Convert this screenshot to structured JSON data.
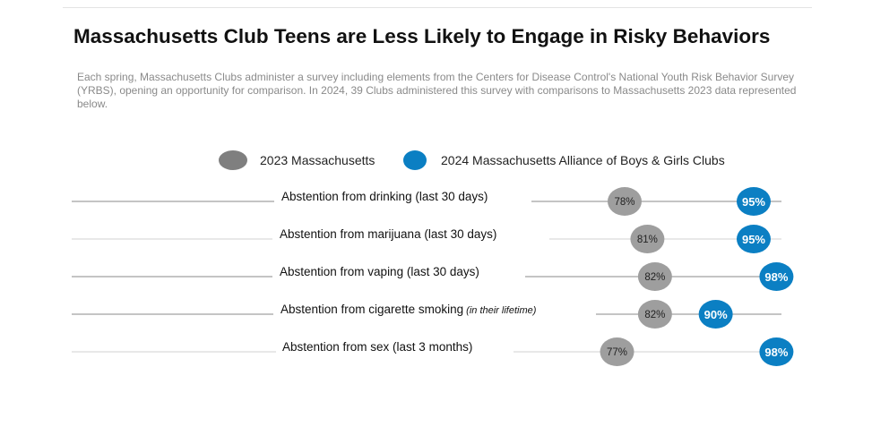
{
  "title": "Massachusetts Club Teens are Less Likely to Engage in Risky Behaviors",
  "subtitle": "Each spring, Massachusetts Clubs administer a survey including elements from the Centers for Disease Control's National Youth Risk Behavior Survey (YRBS), opening an opportunity for comparison.  In 2024, 39 Clubs administered this survey with comparisons to Massachusetts 2023 data represented below.",
  "colors": {
    "ma2023": "#9e9e9e",
    "clubs2024": "#0b7fc3",
    "legend_grey": "#7f7f7f",
    "line": "#d0d0d0",
    "line_dark": "#8a8a8a"
  },
  "chart_data": {
    "type": "scatter",
    "legend_placement": "top",
    "grid": false,
    "xlim": [
      70,
      100
    ],
    "categories": [
      "Abstention from drinking (last 30 days)",
      "Abstention from marijuana (last 30 days)",
      "Abstention from vaping (last 30 days)",
      "Abstention from cigarette smoking",
      "Abstention from sex (last 3 months)"
    ],
    "category_notes": [
      "",
      "",
      "",
      "(in their lifetime)",
      ""
    ],
    "series": [
      {
        "name": "2023 Massachusetts",
        "values": [
          78,
          81,
          82,
          82,
          77
        ],
        "labels": [
          "78%",
          "81%",
          "82%",
          "82%",
          "77%"
        ],
        "color": "#9e9e9e"
      },
      {
        "name": "2024 Massachusetts Alliance of Boys & Girls Clubs",
        "values": [
          95,
          95,
          98,
          90,
          98
        ],
        "labels": [
          "95%",
          "95%",
          "98%",
          "90%",
          "98%"
        ],
        "color": "#0b7fc3"
      }
    ]
  }
}
